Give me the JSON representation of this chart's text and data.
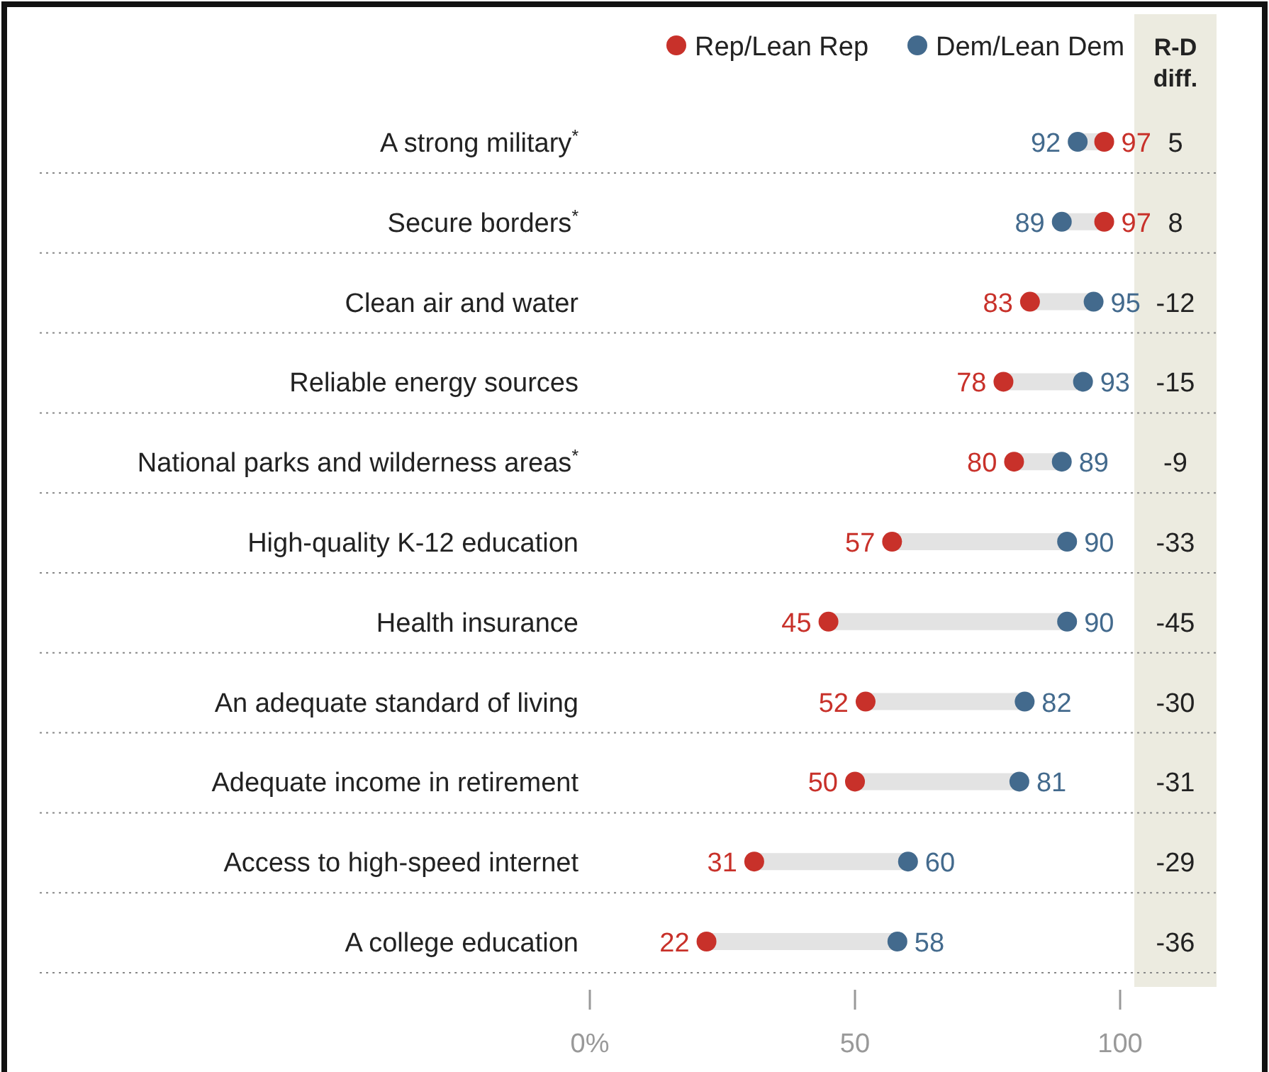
{
  "chart_data": {
    "type": "scatter",
    "orientation": "horizontal",
    "categories": [
      "A strong military$^{*}$",
      "Secure borders$^{*}$",
      "Clean air and water",
      "Reliable energy sources",
      "National parks and wilderness areas$^{*}$",
      "High-quality K-12 education",
      "Health insurance",
      "An adequate standard of living",
      "Adequate income in retirement",
      "Access to high-speed internet",
      "A college education"
    ],
    "series": [
      {
        "name": "Rep/Lean Rep",
        "color": "#c8312a",
        "values": [
          97,
          97,
          83,
          78,
          80,
          57,
          45,
          52,
          50,
          31,
          22
        ]
      },
      {
        "name": "Dem/Lean Dem",
        "color": "#436a8d",
        "values": [
          92,
          89,
          95,
          93,
          89,
          90,
          90,
          82,
          81,
          60,
          58
        ]
      }
    ],
    "xlim": [
      0,
      100
    ],
    "xticks": [
      {
        "value": 0,
        "label": "0%"
      },
      50,
      100
    ],
    "data_labels": true,
    "marker": "circle",
    "legend": "top right",
    "grid": "y",
    "annotations": [
      "R-D diff.",
      "5",
      "8",
      "-12",
      "-15",
      "-9",
      "-33",
      "-45",
      "-30",
      "-31",
      "-29",
      "-36"
    ]
  }
}
